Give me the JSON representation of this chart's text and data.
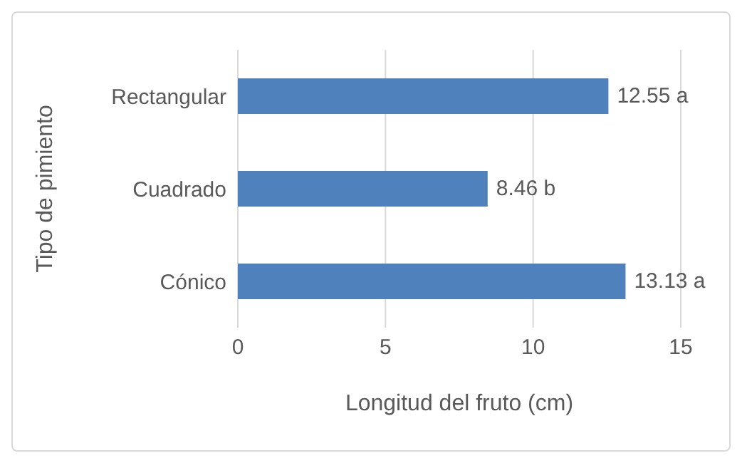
{
  "chart_data": {
    "type": "bar",
    "orientation": "horizontal",
    "ylabel": "Tipo de pimiento",
    "xlabel": "Longitud del fruto (cm)",
    "categories": [
      "Rectangular",
      "Cuadrado",
      "Cónico"
    ],
    "values": [
      12.55,
      8.46,
      13.13
    ],
    "value_labels": [
      "12.55 a",
      "8.46 b",
      "13.13 a"
    ],
    "color": "#4f81bd",
    "xlim": [
      0,
      15
    ],
    "xticks": [
      0,
      5,
      10,
      15
    ],
    "grid": "x",
    "legend": false
  }
}
